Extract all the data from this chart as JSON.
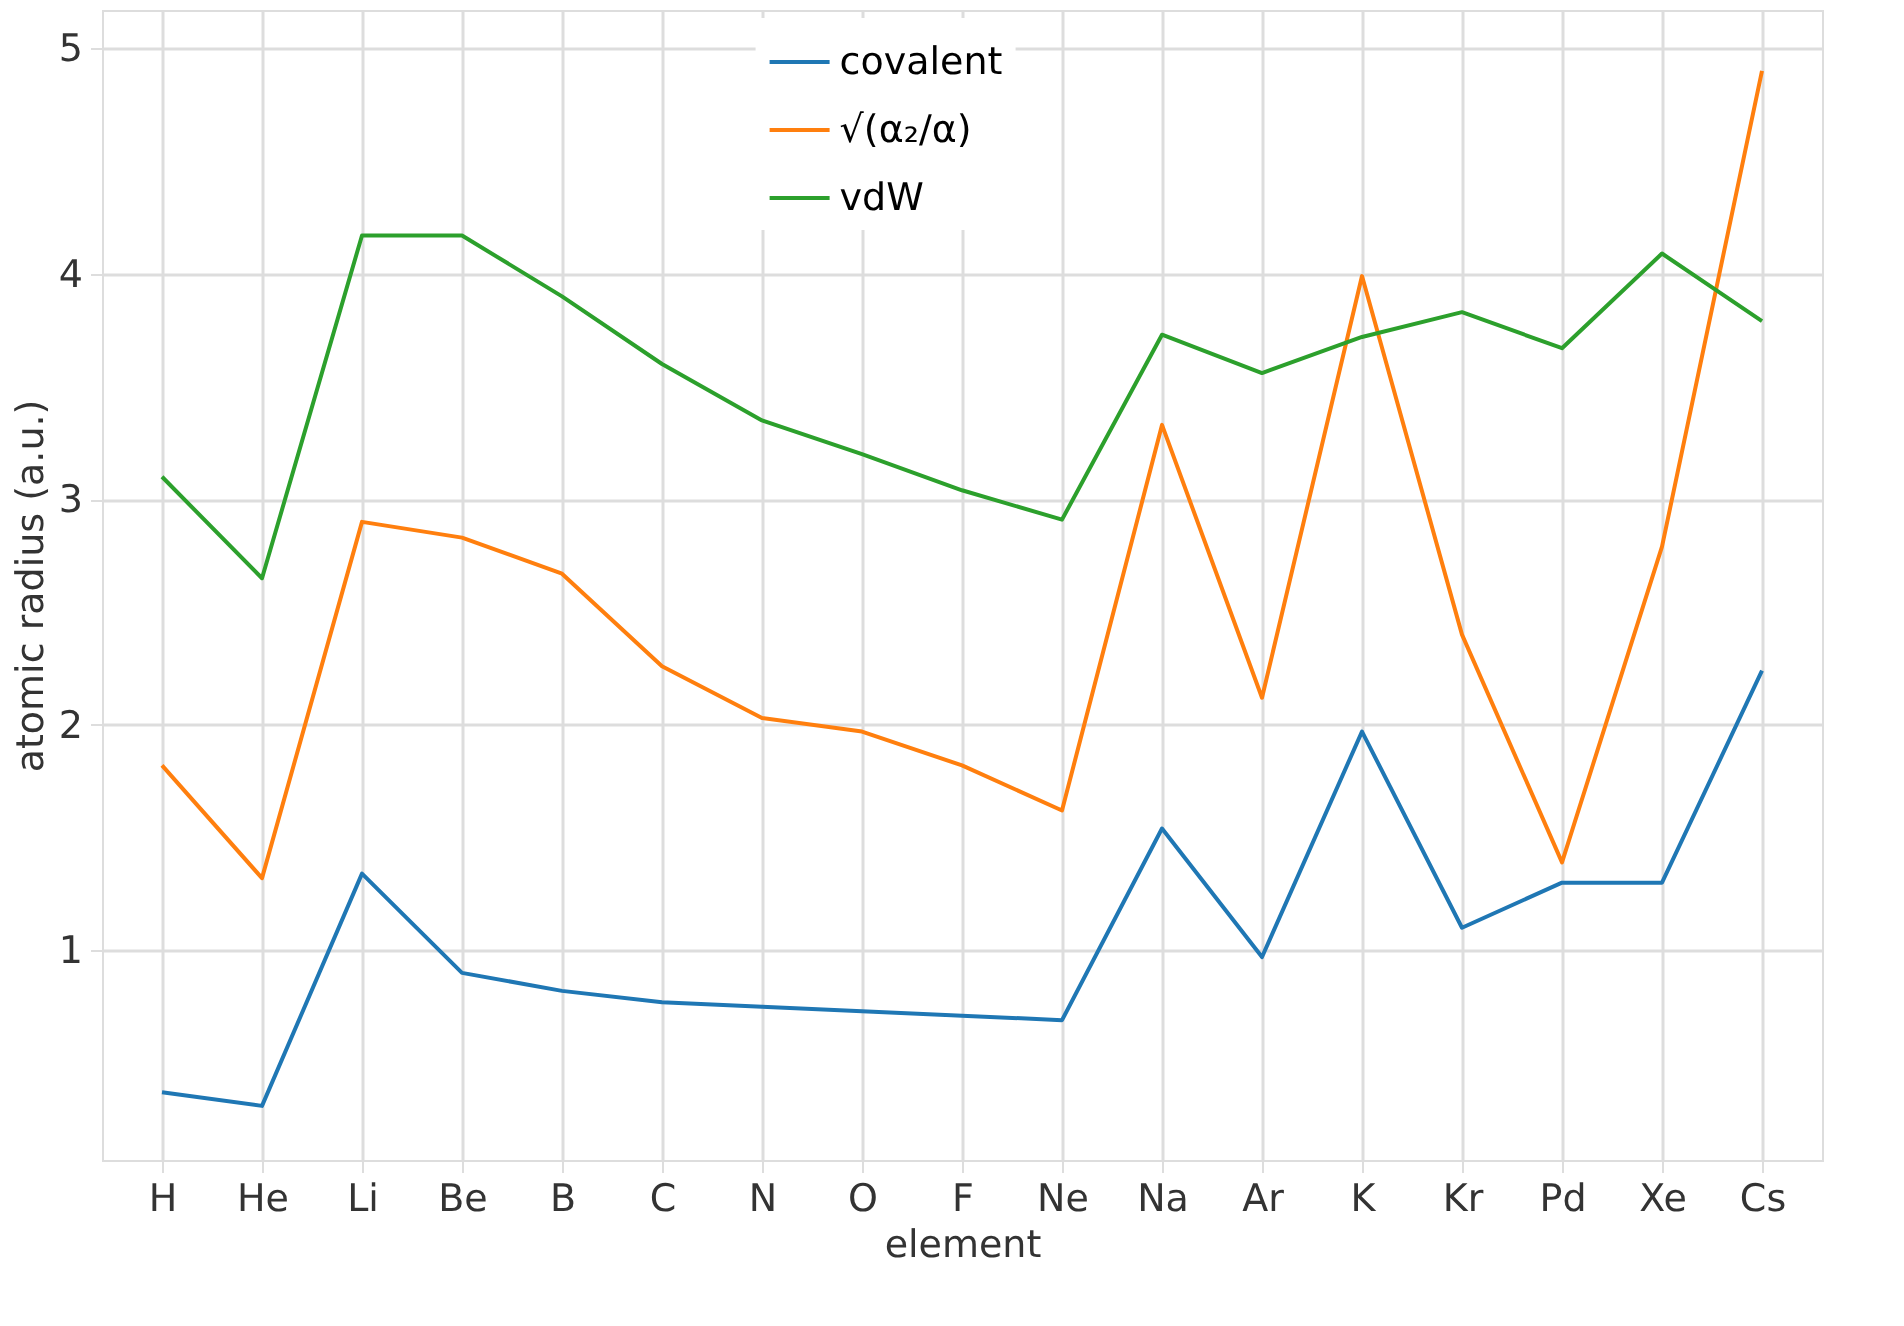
{
  "chart_data": {
    "type": "line",
    "xlabel": "element",
    "ylabel": "atomic radius (a.u.)",
    "categories": [
      "H",
      "He",
      "Li",
      "Be",
      "B",
      "C",
      "N",
      "O",
      "F",
      "Ne",
      "Na",
      "Ar",
      "K",
      "Kr",
      "Pd",
      "Xe",
      "Cs"
    ],
    "series": [
      {
        "name": "covalent",
        "color": "#1f77b4",
        "values": [
          0.37,
          0.31,
          1.34,
          0.9,
          0.82,
          0.77,
          0.75,
          0.73,
          0.71,
          0.69,
          1.54,
          0.97,
          1.97,
          1.1,
          1.3,
          1.3,
          2.24
        ]
      },
      {
        "name": "√(α₂/α)",
        "color": "#ff7f0e",
        "values": [
          1.82,
          1.32,
          2.9,
          2.83,
          2.67,
          2.26,
          2.03,
          1.97,
          1.82,
          1.62,
          3.33,
          2.12,
          3.99,
          2.4,
          1.39,
          2.79,
          4.9
        ]
      },
      {
        "name": "vdW",
        "color": "#2ca02c",
        "values": [
          3.1,
          2.65,
          4.17,
          4.17,
          3.9,
          3.6,
          3.35,
          3.2,
          3.04,
          2.91,
          3.73,
          3.56,
          3.72,
          3.83,
          3.67,
          4.09,
          3.79
        ]
      }
    ],
    "ylim": [
      0.07,
      5.17
    ],
    "yticks": [
      1,
      2,
      3,
      4,
      5
    ],
    "grid": true,
    "legend": "top",
    "marker": "none",
    "line_style": "solid"
  }
}
